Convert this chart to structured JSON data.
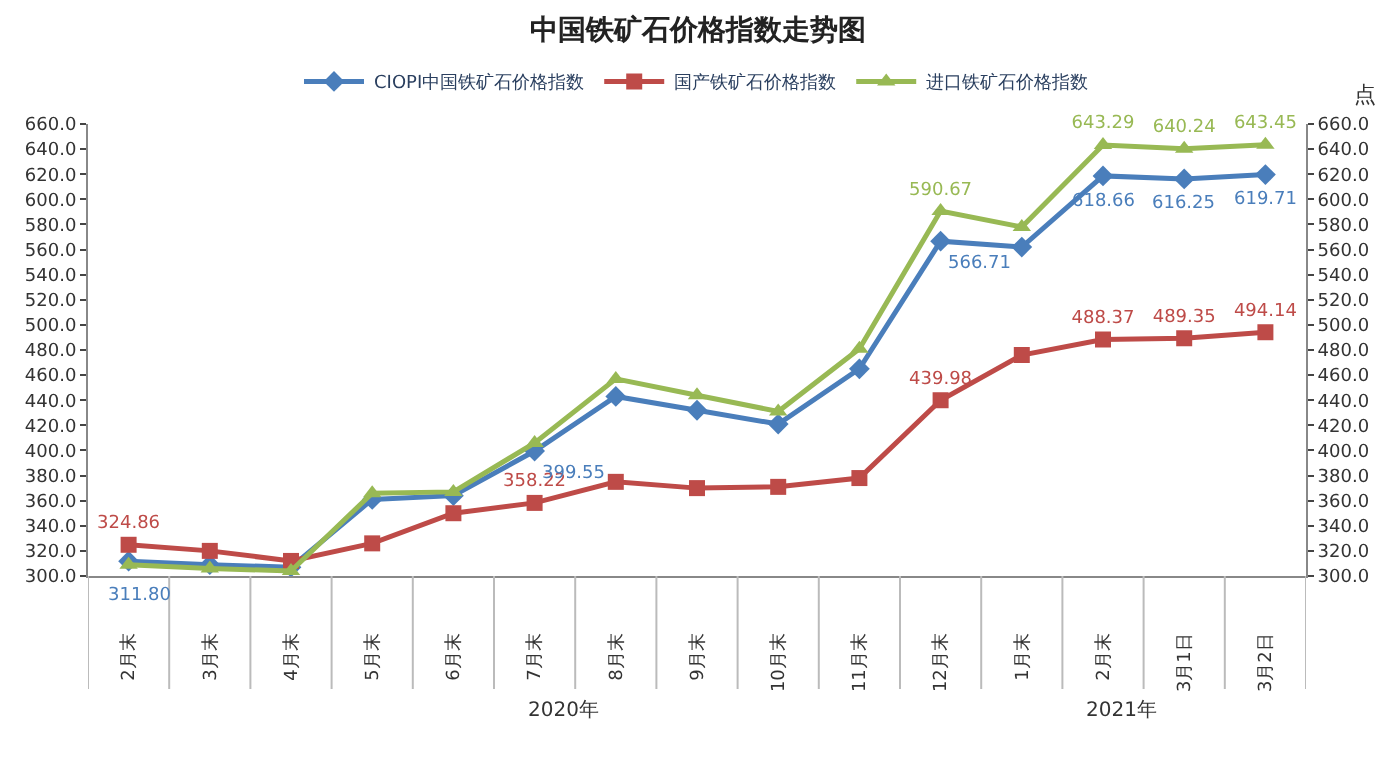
{
  "chart_data": {
    "type": "line",
    "title": "中国铁矿石价格指数走势图",
    "y2label": "点",
    "categories": [
      "2月末",
      "3月末",
      "4月末",
      "5月末",
      "6月末",
      "7月末",
      "8月末",
      "9月末",
      "10月末",
      "11月末",
      "12月末",
      "1月末",
      "2月末",
      "3月1日",
      "3月2日"
    ],
    "series": [
      {
        "name": "CIOPI中国铁矿石价格指数",
        "color": "#4a7ebb",
        "marker": "diamond",
        "values": [
          311.8,
          309,
          307,
          361,
          364,
          399.55,
          443,
          432,
          421,
          465,
          566.71,
          562,
          618.66,
          616.25,
          619.71
        ],
        "value_labels": [
          "311.80",
          null,
          null,
          null,
          null,
          "399.55",
          null,
          null,
          null,
          null,
          "566.71",
          null,
          "618.66",
          "616.25",
          "619.71"
        ]
      },
      {
        "name": "国产铁矿石价格指数",
        "color": "#be4b48",
        "marker": "square",
        "values": [
          324.86,
          320,
          312,
          326,
          350,
          358.22,
          375,
          370,
          371,
          378,
          439.98,
          476,
          488.37,
          489.35,
          494.14
        ],
        "value_labels": [
          "324.86",
          null,
          null,
          null,
          null,
          "358.22",
          null,
          null,
          null,
          null,
          "439.98",
          null,
          "488.37",
          "489.35",
          "494.14"
        ]
      },
      {
        "name": "进口铁矿石价格指数",
        "color": "#98b954",
        "marker": "triangle",
        "values": [
          309,
          306,
          304,
          366,
          367,
          406,
          457,
          444,
          431,
          481,
          590.67,
          578,
          643.29,
          640.24,
          643.45
        ],
        "value_labels": [
          null,
          null,
          null,
          null,
          null,
          null,
          null,
          null,
          null,
          null,
          "590.67",
          null,
          "643.29",
          "640.24",
          "643.45"
        ]
      }
    ],
    "ylim": [
      300,
      660
    ],
    "yticks": [
      {
        "value": 300,
        "label": "300.0"
      },
      {
        "value": 320,
        "label": "320.0"
      },
      {
        "value": 340,
        "label": "340.0"
      },
      {
        "value": 360,
        "label": "360.0"
      },
      {
        "value": 380,
        "label": "380.0"
      },
      {
        "value": 400,
        "label": "400.0"
      },
      {
        "value": 420,
        "label": "420.0"
      },
      {
        "value": 440,
        "label": "440.0"
      },
      {
        "value": 460,
        "label": "460.0"
      },
      {
        "value": 480,
        "label": "480.0"
      },
      {
        "value": 500,
        "label": "500.0"
      },
      {
        "value": 520,
        "label": "520.0"
      },
      {
        "value": 540,
        "label": "540.0"
      },
      {
        "value": 560,
        "label": "560.0"
      },
      {
        "value": 580,
        "label": "580.0"
      },
      {
        "value": 600,
        "label": "600.0"
      },
      {
        "value": 620,
        "label": "620.0"
      },
      {
        "value": 640,
        "label": "640.0"
      },
      {
        "value": 660,
        "label": "660.0"
      }
    ],
    "y2lim": [
      300,
      660
    ],
    "y2ticks": [
      {
        "value": 300,
        "label": "300.0"
      },
      {
        "value": 320,
        "label": "320.0"
      },
      {
        "value": 340,
        "label": "340.0"
      },
      {
        "value": 360,
        "label": "360.0"
      },
      {
        "value": 380,
        "label": "380.0"
      },
      {
        "value": 400,
        "label": "400.0"
      },
      {
        "value": 420,
        "label": "420.0"
      },
      {
        "value": 440,
        "label": "440.0"
      },
      {
        "value": 460,
        "label": "460.0"
      },
      {
        "value": 480,
        "label": "480.0"
      },
      {
        "value": 500,
        "label": "500.0"
      },
      {
        "value": 520,
        "label": "520.0"
      },
      {
        "value": 540,
        "label": "540.0"
      },
      {
        "value": 560,
        "label": "560.0"
      },
      {
        "value": 580,
        "label": "580.0"
      },
      {
        "value": 600,
        "label": "600.0"
      },
      {
        "value": 620,
        "label": "620.0"
      },
      {
        "value": 640,
        "label": "640.0"
      },
      {
        "value": 660,
        "label": "660.0"
      }
    ],
    "annotations": [
      "2020年",
      "2021年"
    ],
    "legend": "top",
    "line_style": "solid"
  }
}
